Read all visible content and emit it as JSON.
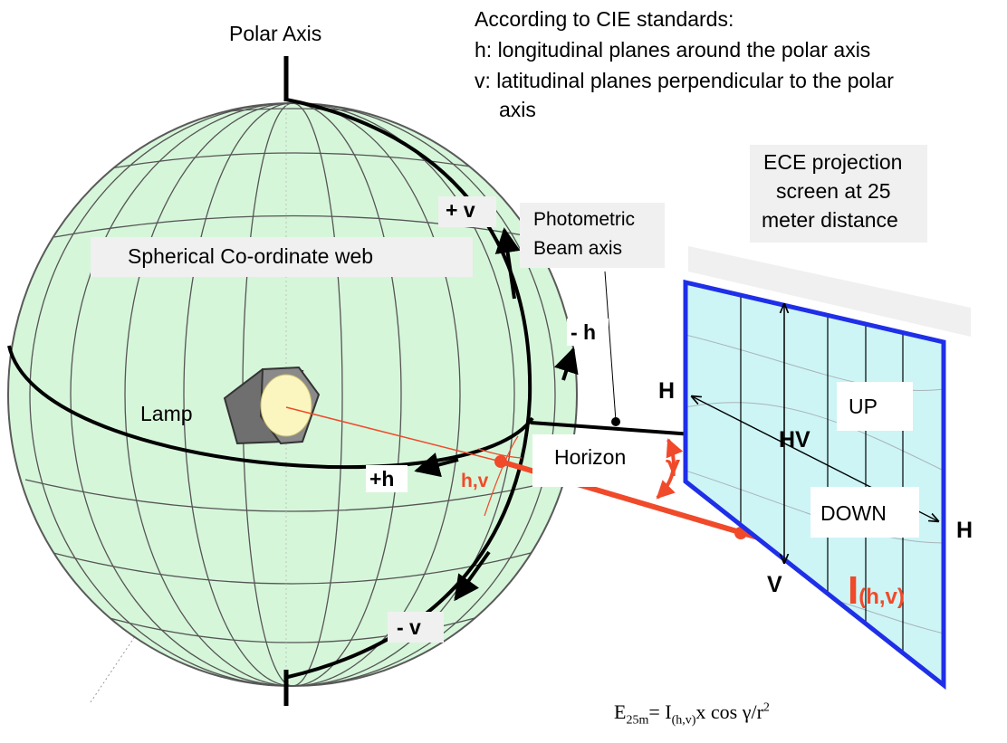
{
  "labels": {
    "polar_axis": "Polar Axis",
    "cie_title": "According to CIE standards:",
    "cie_h": "h: longitudinal planes around the polar axis",
    "cie_v_line1": "v: latitudinal planes perpendicular to the polar",
    "cie_v_line2": "axis",
    "ece_line1": "ECE projection",
    "ece_line2": "screen at 25",
    "ece_line3": "meter distance",
    "photometric_line1": "Photometric",
    "photometric_line2": "Beam axis",
    "web": "Spherical Co-ordinate web",
    "plus_v": "+ v",
    "minus_h": "- h",
    "plus_h": "+h",
    "minus_v": "- v",
    "hv_point": "h,v",
    "lamp": "Lamp",
    "horizon": "Horizon",
    "gamma": "γ",
    "H_left": "H",
    "H_right": "H",
    "HV": "HV",
    "UP": "UP",
    "DOWN": "DOWN",
    "V": "V",
    "intensity_main": "I",
    "intensity_sub": "(h,v)"
  },
  "formula": {
    "e": "E",
    "e_sub": "25m",
    "eq": "= I",
    "i_sub": "(h,v)",
    "mid": "x cos γ/r",
    "sup": "2"
  },
  "colors": {
    "sphere_fill": "#d6f6da",
    "screen_fill": "#cdf5f6",
    "screen_border": "#1f2fe8",
    "beam_red": "#f04a2a",
    "label_box": "#f0f0f0"
  }
}
